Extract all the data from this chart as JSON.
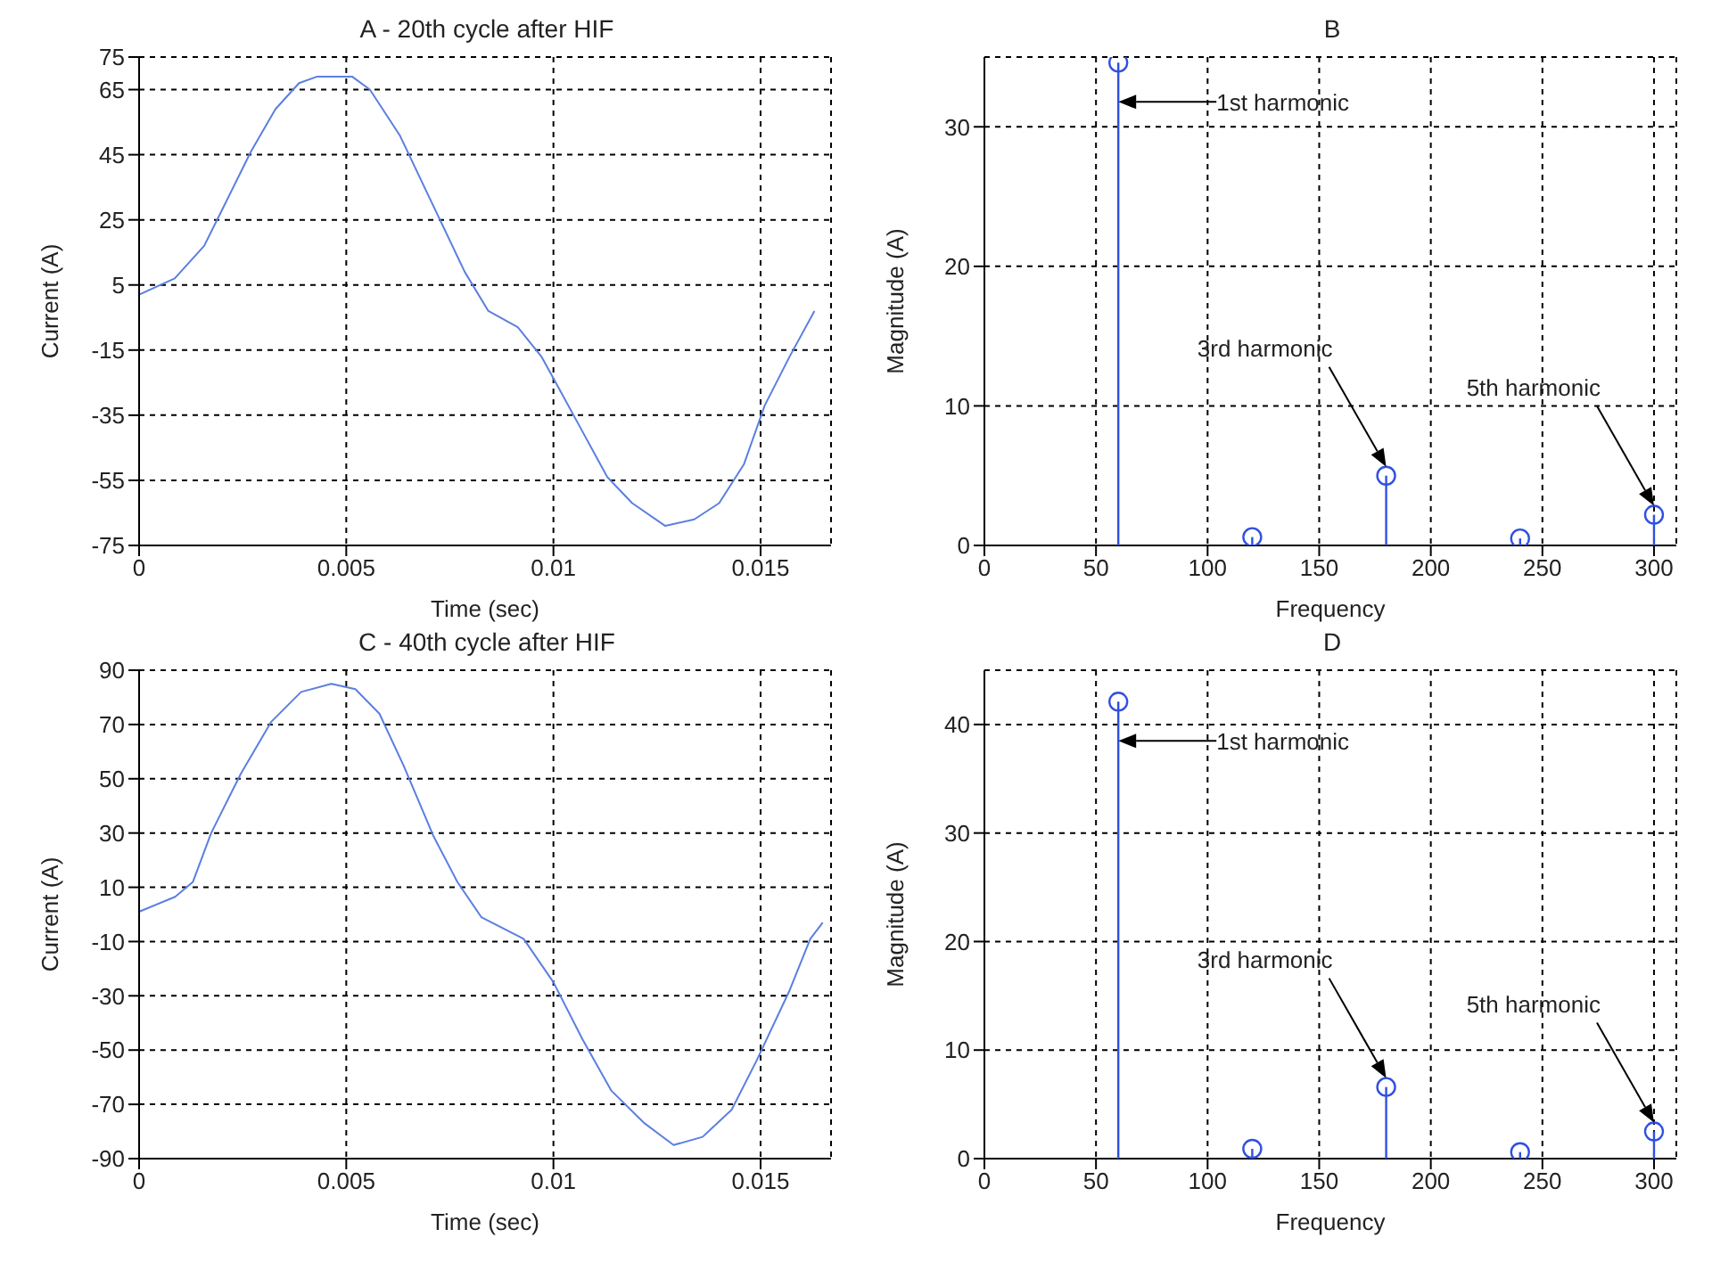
{
  "chart_data": [
    {
      "type": "line",
      "title": "A - 20th cycle after HIF",
      "xlabel": "Time (sec)",
      "ylabel": "Current (A)",
      "xlim": [
        0,
        0.0167
      ],
      "xticks": [
        0,
        0.005,
        0.01,
        0.015
      ],
      "ylim": [
        -75,
        75
      ],
      "yticks": [
        -75,
        -55,
        -35,
        -15,
        5,
        25,
        45,
        65,
        75
      ],
      "grid": true,
      "series": [
        {
          "color": "#5b7fe0",
          "x": [
            0,
            0.00086,
            0.00157,
            0.002,
            0.0027,
            0.00329,
            0.00386,
            0.0043,
            0.00514,
            0.00557,
            0.00629,
            0.007,
            0.00786,
            0.00843,
            0.00914,
            0.00971,
            0.0101,
            0.0107,
            0.0113,
            0.0119,
            0.0127,
            0.0134,
            0.014,
            0.0146,
            0.0151,
            0.0157,
            0.0163
          ],
          "values": [
            2,
            7,
            17,
            28,
            46,
            59,
            67,
            69,
            69,
            65,
            51,
            32,
            9,
            -3,
            -8,
            -17,
            -26,
            -40,
            -54,
            -62,
            -69,
            -67,
            -62,
            -50,
            -32,
            -17,
            -3
          ]
        }
      ]
    },
    {
      "type": "lollipop",
      "title": "B",
      "xlabel": "Frequency",
      "ylabel": "Magnitude (A)",
      "xlim": [
        0,
        310
      ],
      "xticks": [
        0,
        50,
        100,
        150,
        200,
        250,
        300
      ],
      "ylim": [
        0,
        35
      ],
      "yticks": [
        0,
        10,
        20,
        30
      ],
      "grid": true,
      "marker": "circle",
      "series": [
        {
          "color": "#3050e0",
          "x": [
            60,
            120,
            180,
            240,
            300
          ],
          "values": [
            34.6,
            0.6,
            5,
            0.5,
            2.2
          ]
        }
      ],
      "annotations": [
        "1st harmonic",
        "3rd harmonic",
        "5th harmonic"
      ]
    },
    {
      "type": "line",
      "title": "C - 40th cycle after HIF",
      "xlabel": "Time (sec)",
      "ylabel": "Current (A)",
      "xlim": [
        0,
        0.0167
      ],
      "xticks": [
        0,
        0.005,
        0.01,
        0.015
      ],
      "ylim": [
        -90,
        90
      ],
      "yticks": [
        -90,
        -70,
        -50,
        -30,
        -10,
        10,
        30,
        50,
        70,
        90
      ],
      "grid": true,
      "series": [
        {
          "color": "#5b7fe0",
          "x": [
            0,
            0.00087,
            0.0013,
            0.00174,
            0.00246,
            0.00319,
            0.00391,
            0.00464,
            0.00522,
            0.0058,
            0.00638,
            0.0071,
            0.00768,
            0.00826,
            0.00928,
            0.01,
            0.0107,
            0.0114,
            0.0122,
            0.0129,
            0.0136,
            0.0143,
            0.0149,
            0.0157,
            0.0162,
            0.0165
          ],
          "values": [
            1,
            6.5,
            12,
            30,
            52,
            71,
            82,
            85,
            83,
            74,
            55,
            29,
            12,
            -1,
            -9,
            -25,
            -46,
            -65,
            -77,
            -85,
            -82,
            -72,
            -54,
            -28,
            -9,
            -3
          ]
        }
      ]
    },
    {
      "type": "lollipop",
      "title": "D",
      "xlabel": "Frequency",
      "ylabel": "Magnitude (A)",
      "xlim": [
        0,
        310
      ],
      "xticks": [
        0,
        50,
        100,
        150,
        200,
        250,
        300
      ],
      "ylim": [
        0,
        45
      ],
      "yticks": [
        0,
        10,
        20,
        30,
        40
      ],
      "grid": true,
      "marker": "circle",
      "series": [
        {
          "color": "#3050e0",
          "x": [
            60,
            120,
            180,
            240,
            300
          ],
          "values": [
            42.1,
            0.9,
            6.6,
            0.6,
            2.5
          ]
        }
      ],
      "annotations": [
        "1st harmonic",
        "3rd harmonic",
        "5th harmonic"
      ]
    }
  ]
}
